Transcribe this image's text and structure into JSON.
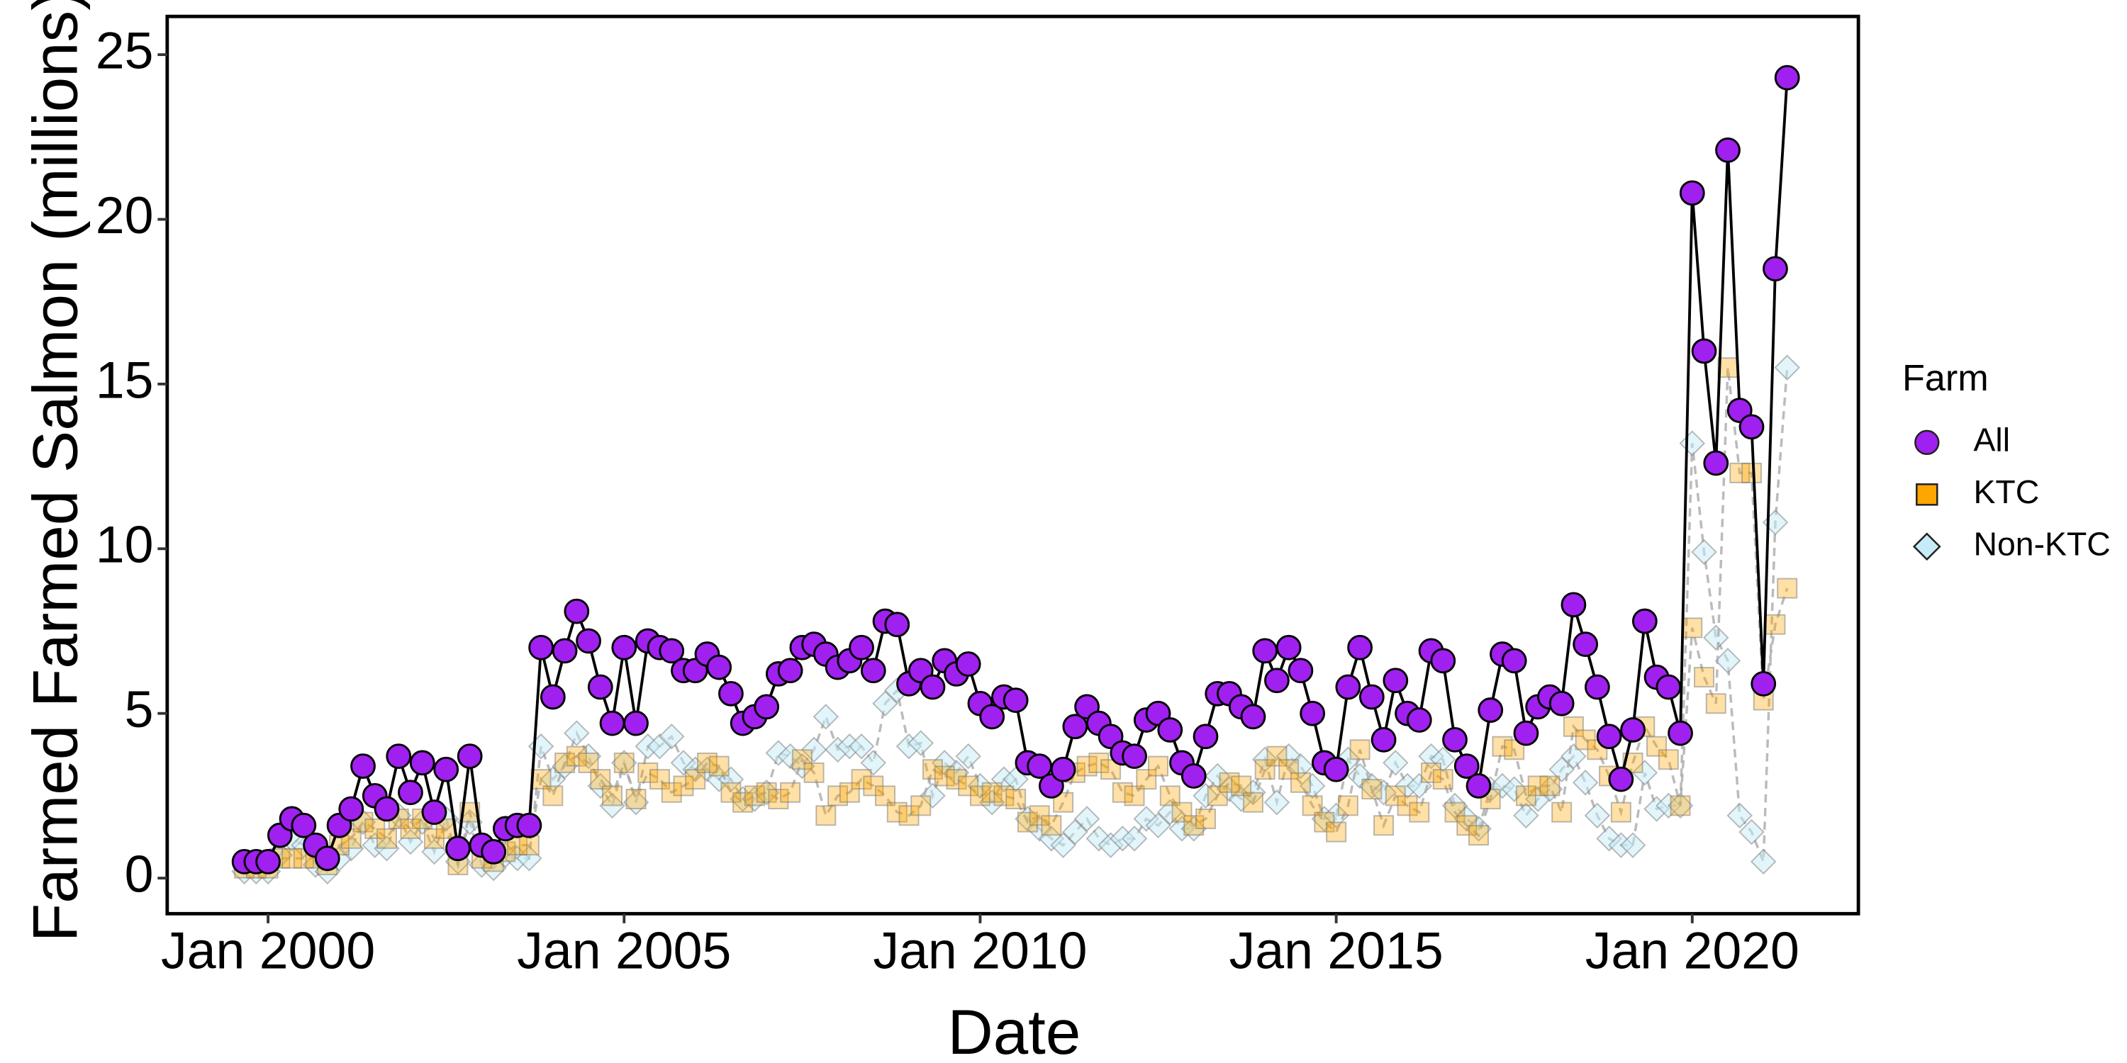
{
  "chart_data": {
    "type": "line",
    "x_label": "Date",
    "y_label": "Farmed Farmed Salmon (millions)",
    "legend_title": "Farm",
    "legend": "right",
    "xlim": [
      "1998-08",
      "2022-05"
    ],
    "xticks": [
      {
        "value": "2000-01",
        "label": "Jan 2000"
      },
      {
        "value": "2005-01",
        "label": "Jan 2005"
      },
      {
        "value": "2010-01",
        "label": "Jan 2010"
      },
      {
        "value": "2015-01",
        "label": "Jan 2015"
      },
      {
        "value": "2020-01",
        "label": "Jan 2020"
      }
    ],
    "ylim": [
      -1.08,
      26.16
    ],
    "yticks": [
      0,
      5,
      10,
      15,
      20,
      25
    ],
    "x": [
      "1999-09",
      "1999-11",
      "2000-01",
      "2000-03",
      "2000-05",
      "2000-07",
      "2000-09",
      "2000-11",
      "2001-01",
      "2001-03",
      "2001-05",
      "2001-07",
      "2001-09",
      "2001-11",
      "2002-01",
      "2002-03",
      "2002-05",
      "2002-07",
      "2002-09",
      "2002-11",
      "2003-01",
      "2003-03",
      "2003-05",
      "2003-07",
      "2003-09",
      "2003-11",
      "2004-01",
      "2004-03",
      "2004-05",
      "2004-07",
      "2004-09",
      "2004-11",
      "2005-01",
      "2005-03",
      "2005-05",
      "2005-07",
      "2005-09",
      "2005-11",
      "2006-01",
      "2006-03",
      "2006-05",
      "2006-07",
      "2006-09",
      "2006-11",
      "2007-01",
      "2007-03",
      "2007-05",
      "2007-07",
      "2007-09",
      "2007-11",
      "2008-01",
      "2008-03",
      "2008-05",
      "2008-07",
      "2008-09",
      "2008-11",
      "2009-01",
      "2009-03",
      "2009-05",
      "2009-07",
      "2009-09",
      "2009-11",
      "2010-01",
      "2010-03",
      "2010-05",
      "2010-07",
      "2010-09",
      "2010-11",
      "2011-01",
      "2011-03",
      "2011-05",
      "2011-07",
      "2011-09",
      "2011-11",
      "2012-01",
      "2012-03",
      "2012-05",
      "2012-07",
      "2012-09",
      "2012-11",
      "2013-01",
      "2013-03",
      "2013-05",
      "2013-07",
      "2013-09",
      "2013-11",
      "2014-01",
      "2014-03",
      "2014-05",
      "2014-07",
      "2014-09",
      "2014-11",
      "2015-01",
      "2015-03",
      "2015-05",
      "2015-07",
      "2015-09",
      "2015-11",
      "2016-01",
      "2016-03",
      "2016-05",
      "2016-07",
      "2016-09",
      "2016-11",
      "2017-01",
      "2017-03",
      "2017-05",
      "2017-07",
      "2017-09",
      "2017-11",
      "2018-01",
      "2018-03",
      "2018-05",
      "2018-07",
      "2018-09",
      "2018-11",
      "2019-01",
      "2019-03",
      "2019-05",
      "2019-07",
      "2019-09",
      "2019-11",
      "2020-01",
      "2020-03",
      "2020-05",
      "2020-07",
      "2020-09",
      "2020-11",
      "2021-01",
      "2021-03",
      "2021-05"
    ],
    "series": [
      {
        "name": "All",
        "color": "#a020f0",
        "marker": "circle",
        "values": [
          0.5,
          0.5,
          0.5,
          1.3,
          1.8,
          1.6,
          1.0,
          0.6,
          1.6,
          2.1,
          3.4,
          2.5,
          2.1,
          3.7,
          2.6,
          3.5,
          2.0,
          3.3,
          0.9,
          3.7,
          1.0,
          0.8,
          1.5,
          1.6,
          1.6,
          7.0,
          5.5,
          6.9,
          8.1,
          7.2,
          5.8,
          4.7,
          7.0,
          4.7,
          7.2,
          7.0,
          6.9,
          6.3,
          6.3,
          6.8,
          6.4,
          5.6,
          4.7,
          4.9,
          5.2,
          6.2,
          6.3,
          7.0,
          7.1,
          6.8,
          6.4,
          6.6,
          7.0,
          6.3,
          7.8,
          7.7,
          5.9,
          6.3,
          5.8,
          6.6,
          6.2,
          6.5,
          5.3,
          4.9,
          5.5,
          5.4,
          3.5,
          3.4,
          2.8,
          3.3,
          4.6,
          5.2,
          4.7,
          4.3,
          3.8,
          3.7,
          4.8,
          5.0,
          4.5,
          3.5,
          3.1,
          4.3,
          5.6,
          5.6,
          5.2,
          4.9,
          6.9,
          6.0,
          7.0,
          6.3,
          5.0,
          3.5,
          3.3,
          5.8,
          7.0,
          5.5,
          4.2,
          6.0,
          5.0,
          4.8,
          6.9,
          6.6,
          4.2,
          3.4,
          2.8,
          5.1,
          6.8,
          6.6,
          4.4,
          5.2,
          5.5,
          5.3,
          8.3,
          7.1,
          5.8,
          4.3,
          3.0,
          4.5,
          7.8,
          6.1,
          5.8,
          4.4,
          20.8,
          16.0,
          12.6,
          22.1,
          14.2,
          13.7,
          5.9,
          18.5,
          24.3
        ]
      },
      {
        "name": "KTC",
        "color": "#ffa500",
        "marker": "square",
        "values": [
          0.3,
          0.3,
          0.3,
          0.6,
          0.6,
          0.6,
          0.6,
          0.4,
          1.0,
          1.2,
          1.7,
          1.5,
          1.2,
          1.8,
          1.5,
          1.8,
          1.2,
          1.5,
          0.4,
          2.0,
          0.6,
          0.5,
          0.8,
          1.0,
          1.0,
          3.0,
          2.5,
          3.5,
          3.7,
          3.5,
          3.0,
          2.5,
          3.5,
          2.4,
          3.2,
          3.0,
          2.6,
          2.8,
          3.0,
          3.5,
          3.4,
          2.6,
          2.3,
          2.5,
          2.6,
          2.4,
          2.6,
          3.6,
          3.2,
          1.9,
          2.5,
          2.6,
          3.0,
          2.8,
          2.5,
          2.0,
          1.9,
          2.2,
          3.3,
          3.1,
          3.0,
          2.8,
          2.5,
          2.6,
          2.5,
          2.4,
          1.7,
          1.9,
          1.6,
          2.3,
          3.2,
          3.4,
          3.5,
          3.3,
          2.6,
          2.5,
          3.0,
          3.4,
          2.5,
          2.0,
          1.6,
          1.8,
          2.5,
          2.9,
          2.8,
          2.3,
          3.3,
          3.7,
          3.3,
          2.9,
          2.2,
          1.7,
          1.4,
          2.2,
          3.9,
          2.7,
          1.6,
          2.5,
          2.2,
          2.0,
          3.2,
          3.0,
          2.0,
          1.6,
          1.3,
          2.4,
          4.0,
          3.9,
          2.5,
          2.8,
          2.8,
          2.0,
          4.6,
          4.2,
          3.9,
          3.1,
          2.0,
          3.5,
          4.6,
          4.0,
          3.6,
          2.2,
          7.6,
          6.1,
          5.3,
          15.5,
          12.3,
          12.3,
          5.4,
          7.7,
          8.8
        ]
      },
      {
        "name": "Non-KTC",
        "color": "#c6ecf7",
        "marker": "diamond",
        "values": [
          0.2,
          0.2,
          0.2,
          0.7,
          1.2,
          1.0,
          0.4,
          0.2,
          0.6,
          0.9,
          1.7,
          1.0,
          0.9,
          1.9,
          1.1,
          1.7,
          0.8,
          1.8,
          0.5,
          1.7,
          0.4,
          0.3,
          0.7,
          0.6,
          0.6,
          4.0,
          3.0,
          3.4,
          4.4,
          3.7,
          2.8,
          2.2,
          3.5,
          2.3,
          4.0,
          4.0,
          4.3,
          3.5,
          3.3,
          3.3,
          3.0,
          3.0,
          2.4,
          2.4,
          2.6,
          3.8,
          3.7,
          3.4,
          3.9,
          4.9,
          3.9,
          4.0,
          4.0,
          3.5,
          5.3,
          5.7,
          4.0,
          4.1,
          2.5,
          3.5,
          3.2,
          3.7,
          2.8,
          2.3,
          3.0,
          3.0,
          1.8,
          1.5,
          1.2,
          1.0,
          1.4,
          1.8,
          1.2,
          1.0,
          1.2,
          1.2,
          1.8,
          1.6,
          2.0,
          1.5,
          1.5,
          2.5,
          3.1,
          2.7,
          2.4,
          2.6,
          3.6,
          2.3,
          3.7,
          3.4,
          2.8,
          1.8,
          1.9,
          3.6,
          3.1,
          2.8,
          2.6,
          3.5,
          2.8,
          2.8,
          3.7,
          3.6,
          2.2,
          1.8,
          1.5,
          2.7,
          2.8,
          2.7,
          1.9,
          2.4,
          2.7,
          3.3,
          3.7,
          2.9,
          1.9,
          1.2,
          1.0,
          1.0,
          3.2,
          2.1,
          2.2,
          2.2,
          13.2,
          9.9,
          7.3,
          6.6,
          1.9,
          1.4,
          0.5,
          10.8,
          15.5
        ]
      }
    ]
  }
}
